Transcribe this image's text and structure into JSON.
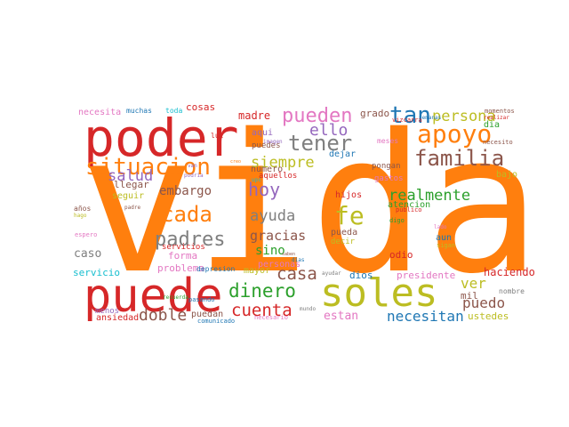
{
  "colors": {
    "red": "#d62728",
    "orange": "#ff7f0e",
    "olive": "#bcbd22",
    "grey": "#7f7f7f",
    "brown": "#8c564b",
    "blue": "#1f77b4",
    "purple": "#9467bd",
    "pink": "#e377c2",
    "green": "#2ca02c",
    "cyan": "#17becf"
  },
  "words": [
    {
      "text": "vida",
      "color": "orange"
    },
    {
      "text": "poder",
      "color": "red"
    },
    {
      "text": "puede",
      "color": "red"
    },
    {
      "text": "soles",
      "color": "olive"
    },
    {
      "text": "situacion",
      "color": "orange"
    },
    {
      "text": "apoyo",
      "color": "orange"
    },
    {
      "text": "familia",
      "color": "brown"
    },
    {
      "text": "pueden",
      "color": "pink"
    },
    {
      "text": "tan",
      "color": "blue"
    },
    {
      "text": "persona",
      "color": "olive"
    },
    {
      "text": "tener",
      "color": "grey"
    },
    {
      "text": "siempre",
      "color": "olive"
    },
    {
      "text": "ello",
      "color": "purple"
    },
    {
      "text": "cada",
      "color": "orange"
    },
    {
      "text": "padres",
      "color": "grey"
    },
    {
      "text": "salud",
      "color": "purple"
    },
    {
      "text": "hoy",
      "color": "purple"
    },
    {
      "text": "fe",
      "color": "olive"
    },
    {
      "text": "realmente",
      "color": "green"
    },
    {
      "text": "ayuda",
      "color": "grey"
    },
    {
      "text": "embargo",
      "color": "brown"
    },
    {
      "text": "dinero",
      "color": "green"
    },
    {
      "text": "cuenta",
      "color": "red"
    },
    {
      "text": "doble",
      "color": "brown"
    },
    {
      "text": "casa",
      "color": "brown"
    },
    {
      "text": "ver",
      "color": "olive"
    },
    {
      "text": "puedo",
      "color": "brown"
    },
    {
      "text": "gracias",
      "color": "brown"
    },
    {
      "text": "sino",
      "color": "green"
    },
    {
      "text": "personas",
      "color": "pink"
    },
    {
      "text": "necesitan",
      "color": "blue"
    },
    {
      "text": "estan",
      "color": "pink"
    },
    {
      "text": "caso",
      "color": "grey"
    },
    {
      "text": "forma",
      "color": "pink"
    },
    {
      "text": "servicio",
      "color": "cyan"
    },
    {
      "text": "problema",
      "color": "pink"
    },
    {
      "text": "mayor",
      "color": "olive"
    },
    {
      "text": "dios",
      "color": "blue"
    },
    {
      "text": "odio",
      "color": "red"
    },
    {
      "text": "presidente",
      "color": "pink"
    },
    {
      "text": "haciendo",
      "color": "red"
    },
    {
      "text": "mil",
      "color": "brown"
    },
    {
      "text": "ustedes",
      "color": "olive"
    },
    {
      "text": "ansiedad",
      "color": "red"
    },
    {
      "text": "menos",
      "color": "purple"
    },
    {
      "text": "puedan",
      "color": "brown"
    },
    {
      "text": "madre",
      "color": "red"
    },
    {
      "text": "grado",
      "color": "brown"
    },
    {
      "text": "cosas",
      "color": "red"
    },
    {
      "text": "necesita",
      "color": "pink"
    },
    {
      "text": "llegar",
      "color": "brown"
    },
    {
      "text": "seguir",
      "color": "olive"
    },
    {
      "text": "numero",
      "color": "brown"
    },
    {
      "text": "dejar",
      "color": "blue"
    },
    {
      "text": "aqui",
      "color": "purple"
    },
    {
      "text": "puedes",
      "color": "brown"
    },
    {
      "text": "aquellos",
      "color": "red"
    },
    {
      "text": "hijos",
      "color": "red"
    },
    {
      "text": "pueda",
      "color": "brown"
    },
    {
      "text": "atencion",
      "color": "green"
    },
    {
      "text": "gastos",
      "color": "pink"
    },
    {
      "text": "pongan",
      "color": "brown"
    },
    {
      "text": "bajo",
      "color": "olive"
    },
    {
      "text": "aun",
      "color": "blue"
    },
    {
      "text": "decir",
      "color": "olive"
    },
    {
      "text": "servicios",
      "color": "red"
    },
    {
      "text": "depresion",
      "color": "blue"
    },
    {
      "text": "nombre",
      "color": "grey"
    },
    {
      "text": "dia",
      "color": "green"
    },
    {
      "text": "muchas",
      "color": "blue"
    },
    {
      "text": "toda",
      "color": "cyan"
    },
    {
      "text": "luz",
      "color": "red"
    },
    {
      "text": "meses",
      "color": "pink"
    },
    {
      "text": "vizcarra",
      "color": "red"
    },
    {
      "text": "momentos",
      "color": "brown"
    },
    {
      "text": "necesito",
      "color": "brown"
    },
    {
      "text": "realizar",
      "color": "red"
    },
    {
      "text": "semanas",
      "color": "blue"
    },
    {
      "text": "imagen",
      "color": "purple"
    },
    {
      "text": "padre",
      "color": "brown"
    },
    {
      "text": "años",
      "color": "brown"
    },
    {
      "text": "hago",
      "color": "olive"
    },
    {
      "text": "espero",
      "color": "pink"
    },
    {
      "text": "publico",
      "color": "red"
    },
    {
      "text": "sigan",
      "color": "olive"
    },
    {
      "text": "lado",
      "color": "pink"
    },
    {
      "text": "digo",
      "color": "green"
    },
    {
      "text": "pasando",
      "color": "blue"
    },
    {
      "text": "recuerda",
      "color": "green"
    },
    {
      "text": "comunicado",
      "color": "blue"
    },
    {
      "text": "necesario",
      "color": "pink"
    },
    {
      "text": "mundo",
      "color": "grey"
    },
    {
      "text": "dias",
      "color": "blue"
    },
    {
      "text": "ayudar",
      "color": "grey"
    },
    {
      "text": "upc",
      "color": "cyan"
    },
    {
      "text": "podria",
      "color": "purple"
    },
    {
      "text": "van",
      "color": "purple"
    },
    {
      "text": "creo",
      "color": "orange"
    },
    {
      "text": "saben",
      "color": "brown"
    }
  ]
}
